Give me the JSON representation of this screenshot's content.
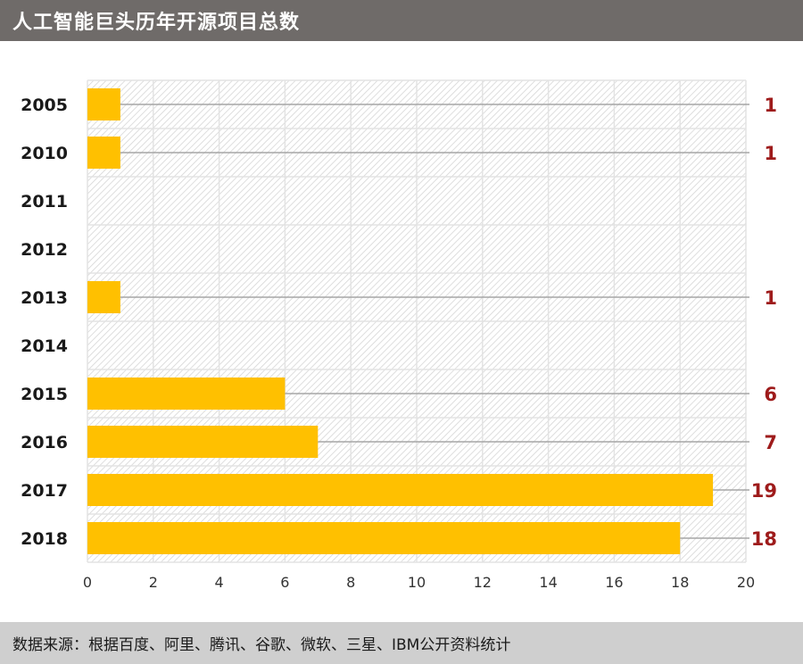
{
  "title": "人工智能巨头历年开源项目总数",
  "source": "数据来源：根据百度、阿里、腾讯、谷歌、微软、三星、IBM公开资料统计",
  "colors": {
    "bar": "#ffc000",
    "value_label": "#9e1b1b",
    "header_bg": "#6f6b69",
    "footer_bg": "#cfcfcf",
    "leader_line": "#a6a6a6"
  },
  "chart_data": {
    "type": "bar",
    "orientation": "horizontal",
    "categories": [
      "2005",
      "2010",
      "2011",
      "2012",
      "2013",
      "2014",
      "2015",
      "2016",
      "2017",
      "2018"
    ],
    "values": [
      1,
      1,
      null,
      null,
      1,
      null,
      6,
      7,
      19,
      18
    ],
    "value_labels": [
      "1",
      "1",
      "",
      "",
      "1",
      "",
      "6",
      "7",
      "19",
      "18"
    ],
    "xlim": [
      0,
      20
    ],
    "xticks": [
      "0",
      "2",
      "4",
      "6",
      "8",
      "10",
      "12",
      "14",
      "16",
      "18",
      "20"
    ],
    "grid": true,
    "background": "hatched"
  }
}
